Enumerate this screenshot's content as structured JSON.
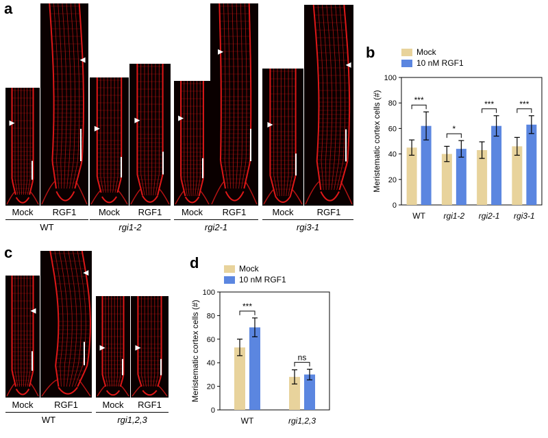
{
  "panels": {
    "a": "a",
    "b": "b",
    "c": "c",
    "d": "d"
  },
  "panel_a": {
    "treatment_labels": [
      "Mock",
      "RGF1",
      "Mock",
      "RGF1",
      "Mock",
      "RGF1",
      "Mock",
      "RGF1"
    ],
    "genotypes": [
      "WT",
      "rgi1-2",
      "rgi2-1",
      "rgi3-1"
    ]
  },
  "panel_c": {
    "treatment_labels": [
      "Mock",
      "RGF1",
      "Mock",
      "RGF1"
    ],
    "genotypes": [
      "WT",
      "rgi1,2,3"
    ]
  },
  "colors": {
    "mock": "#e8d39c",
    "rgf1": "#5b86e0",
    "root": "#e01818",
    "background": "#0a0000"
  },
  "chart_data": [
    {
      "id": "b",
      "type": "bar",
      "ylabel": "Meristematic cortex cells (#)",
      "categories": [
        "WT",
        "rgi1-2",
        "rgi2-1",
        "rgi3-1"
      ],
      "ylim": [
        0,
        100
      ],
      "yticks": [
        "0",
        "20",
        "40",
        "60",
        "80",
        "100"
      ],
      "legend": [
        "Mock",
        "10 nM RGF1"
      ],
      "legend_position": "top-left",
      "series": [
        {
          "name": "Mock",
          "values": [
            45,
            40,
            43,
            46
          ],
          "errors": [
            6,
            6,
            6.5,
            7
          ]
        },
        {
          "name": "10 nM RGF1",
          "values": [
            62,
            44,
            62,
            63
          ],
          "errors": [
            11,
            6.5,
            8,
            7
          ]
        }
      ],
      "significance": [
        "***",
        "*",
        "***",
        "***"
      ]
    },
    {
      "id": "d",
      "type": "bar",
      "ylabel": "Meristematic cortex cells (#)",
      "categories": [
        "WT",
        "rgi1,2,3"
      ],
      "ylim": [
        0,
        100
      ],
      "yticks": [
        "0",
        "20",
        "40",
        "60",
        "80",
        "100"
      ],
      "legend": [
        "Mock",
        "10 nM RGF1"
      ],
      "legend_position": "top-left",
      "series": [
        {
          "name": "Mock",
          "values": [
            53,
            28
          ],
          "errors": [
            7,
            6
          ]
        },
        {
          "name": "10 nM RGF1",
          "values": [
            70,
            30
          ],
          "errors": [
            8,
            4.5
          ]
        }
      ],
      "significance": [
        "***",
        "ns"
      ]
    }
  ]
}
